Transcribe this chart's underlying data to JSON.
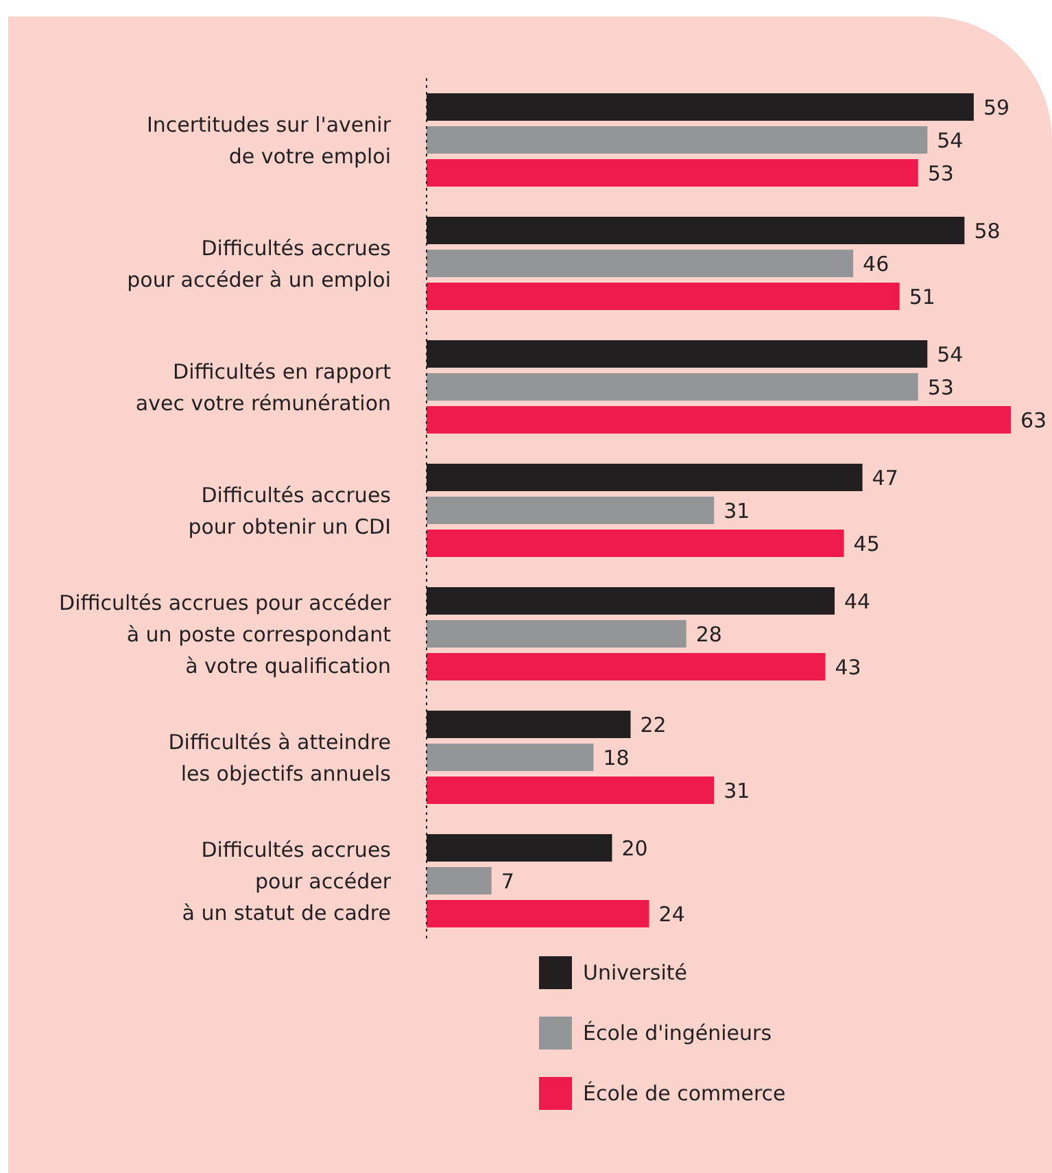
{
  "chart_data": {
    "type": "bar",
    "orientation": "horizontal",
    "data_labels": true,
    "legend": "bottom",
    "categories": [
      "Incertitudes sur l'avenir\nde votre emploi",
      "Difficultés accrues\npour accéder à un emploi",
      "Difficultés en rapport\navec votre rémunération",
      "Difficultés accrues\npour obtenir un CDI",
      "Difficultés accrues pour accéder\nà un poste correspondant\nà votre qualification",
      "Difficultés à atteindre\nles objectifs annuels",
      "Difficultés accrues\npour accéder\nà un statut de cadre"
    ],
    "series": [
      {
        "name": "Université",
        "color": "#231f20",
        "values": [
          59,
          58,
          54,
          47,
          44,
          22,
          20
        ]
      },
      {
        "name": "École d'ingénieurs",
        "color": "#939598",
        "values": [
          54,
          46,
          53,
          31,
          28,
          18,
          7
        ]
      },
      {
        "name": "École de commerce",
        "color": "#ed1a4b",
        "values": [
          53,
          51,
          63,
          45,
          43,
          31,
          24
        ]
      }
    ]
  }
}
